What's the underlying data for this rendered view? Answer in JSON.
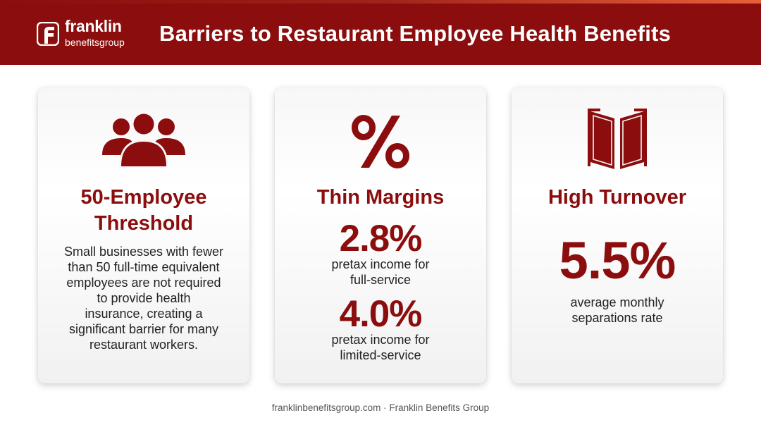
{
  "header": {
    "logo": {
      "word1": "franklin",
      "word2": "benefitsgroup"
    },
    "title": "Barriers to Restaurant Employee Health Benefits"
  },
  "colors": {
    "brand": "#8b0d0d",
    "card_bg": "#f5f5f5",
    "text": "#222222"
  },
  "cards": [
    {
      "icon": "people-group-icon",
      "heading_line1": "50-Employee",
      "heading_line2": "Threshold",
      "description_lines": [
        "Small businesses with fewer",
        "than 50 full-time equivalent",
        "employees are not required",
        "to provide health",
        "insurance, creating a",
        "significant barrier for many",
        "restaurant workers."
      ]
    },
    {
      "icon": "percent-icon",
      "heading": "Thin Margins",
      "stats": [
        {
          "value": "2.8%",
          "label_line1": "pretax income for",
          "label_line2": "full-service"
        },
        {
          "value": "4.0%",
          "label_line1": "pretax income for",
          "label_line2": "limited-service"
        }
      ]
    },
    {
      "icon": "door-exit-icon",
      "heading": "High Turnover",
      "value": "5.5%",
      "label_line1": "average monthly",
      "label_line2": "separations rate"
    }
  ],
  "footer": "franklinbenefitsgroup.com · Franklin Benefits Group"
}
